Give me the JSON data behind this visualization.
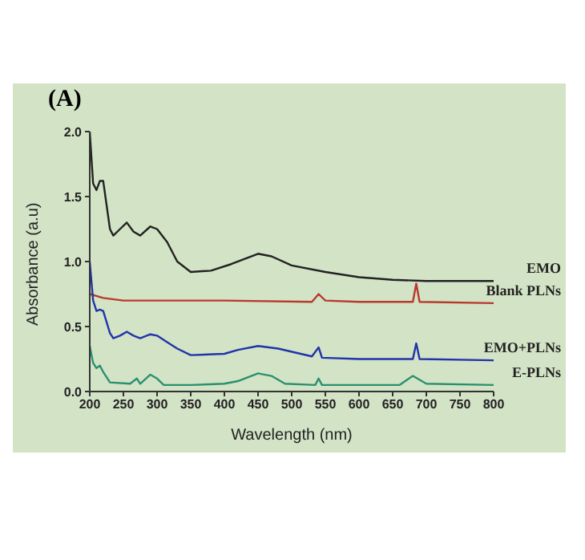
{
  "chart_data": {
    "type": "line",
    "title": "(A)",
    "xlabel": "Wavelength (nm)",
    "ylabel": "Absorbance (a.u)",
    "xlim": [
      200,
      800
    ],
    "xticks": [
      200,
      250,
      300,
      350,
      400,
      450,
      500,
      550,
      600,
      650,
      700,
      750,
      800
    ],
    "ylim": [
      0,
      2
    ],
    "yticks": [
      {
        "value": 0,
        "label": "0.0"
      },
      {
        "value": 0.5,
        "label": "0.5"
      },
      {
        "value": 1,
        "label": "1.0"
      },
      {
        "value": 1.5,
        "label": "1.5"
      },
      {
        "value": 2,
        "label": "2.0"
      }
    ],
    "grid": false,
    "legend": false,
    "marker": "none",
    "line_style": "solid",
    "series": [
      {
        "name": "EMO",
        "color": "#222222",
        "x": [
          200,
          205,
          210,
          215,
          220,
          230,
          235,
          245,
          255,
          265,
          275,
          290,
          300,
          315,
          330,
          350,
          380,
          410,
          450,
          470,
          500,
          550,
          600,
          650,
          700,
          750,
          800
        ],
        "values": [
          2.0,
          1.6,
          1.55,
          1.62,
          1.62,
          1.25,
          1.2,
          1.25,
          1.3,
          1.23,
          1.2,
          1.27,
          1.25,
          1.15,
          1.0,
          0.92,
          0.93,
          0.98,
          1.06,
          1.04,
          0.97,
          0.92,
          0.88,
          0.86,
          0.85,
          0.85,
          0.85
        ]
      },
      {
        "name": "Blank PLNs",
        "color": "#b83a2e",
        "x": [
          200,
          220,
          250,
          400,
          530,
          540,
          550,
          600,
          680,
          685,
          690,
          800
        ],
        "values": [
          0.75,
          0.72,
          0.7,
          0.7,
          0.69,
          0.75,
          0.7,
          0.69,
          0.69,
          0.83,
          0.69,
          0.68
        ]
      },
      {
        "name": "EMO+PLNs",
        "color": "#2233aa",
        "x": [
          200,
          205,
          210,
          215,
          220,
          230,
          235,
          245,
          255,
          265,
          275,
          290,
          300,
          315,
          330,
          350,
          400,
          420,
          450,
          480,
          530,
          540,
          545,
          600,
          680,
          685,
          690,
          800
        ],
        "values": [
          1.0,
          0.7,
          0.62,
          0.63,
          0.62,
          0.45,
          0.41,
          0.43,
          0.46,
          0.43,
          0.41,
          0.44,
          0.43,
          0.38,
          0.33,
          0.28,
          0.29,
          0.32,
          0.35,
          0.33,
          0.27,
          0.34,
          0.26,
          0.25,
          0.25,
          0.37,
          0.25,
          0.24
        ]
      },
      {
        "name": "E-PLNs",
        "color": "#2a9070",
        "x": [
          200,
          205,
          210,
          215,
          220,
          230,
          260,
          270,
          275,
          290,
          300,
          310,
          350,
          400,
          420,
          450,
          470,
          490,
          535,
          540,
          545,
          660,
          680,
          700,
          800
        ],
        "values": [
          0.35,
          0.22,
          0.18,
          0.2,
          0.15,
          0.07,
          0.06,
          0.1,
          0.06,
          0.13,
          0.1,
          0.05,
          0.05,
          0.06,
          0.08,
          0.14,
          0.12,
          0.06,
          0.05,
          0.1,
          0.05,
          0.05,
          0.12,
          0.06,
          0.05
        ]
      }
    ]
  }
}
